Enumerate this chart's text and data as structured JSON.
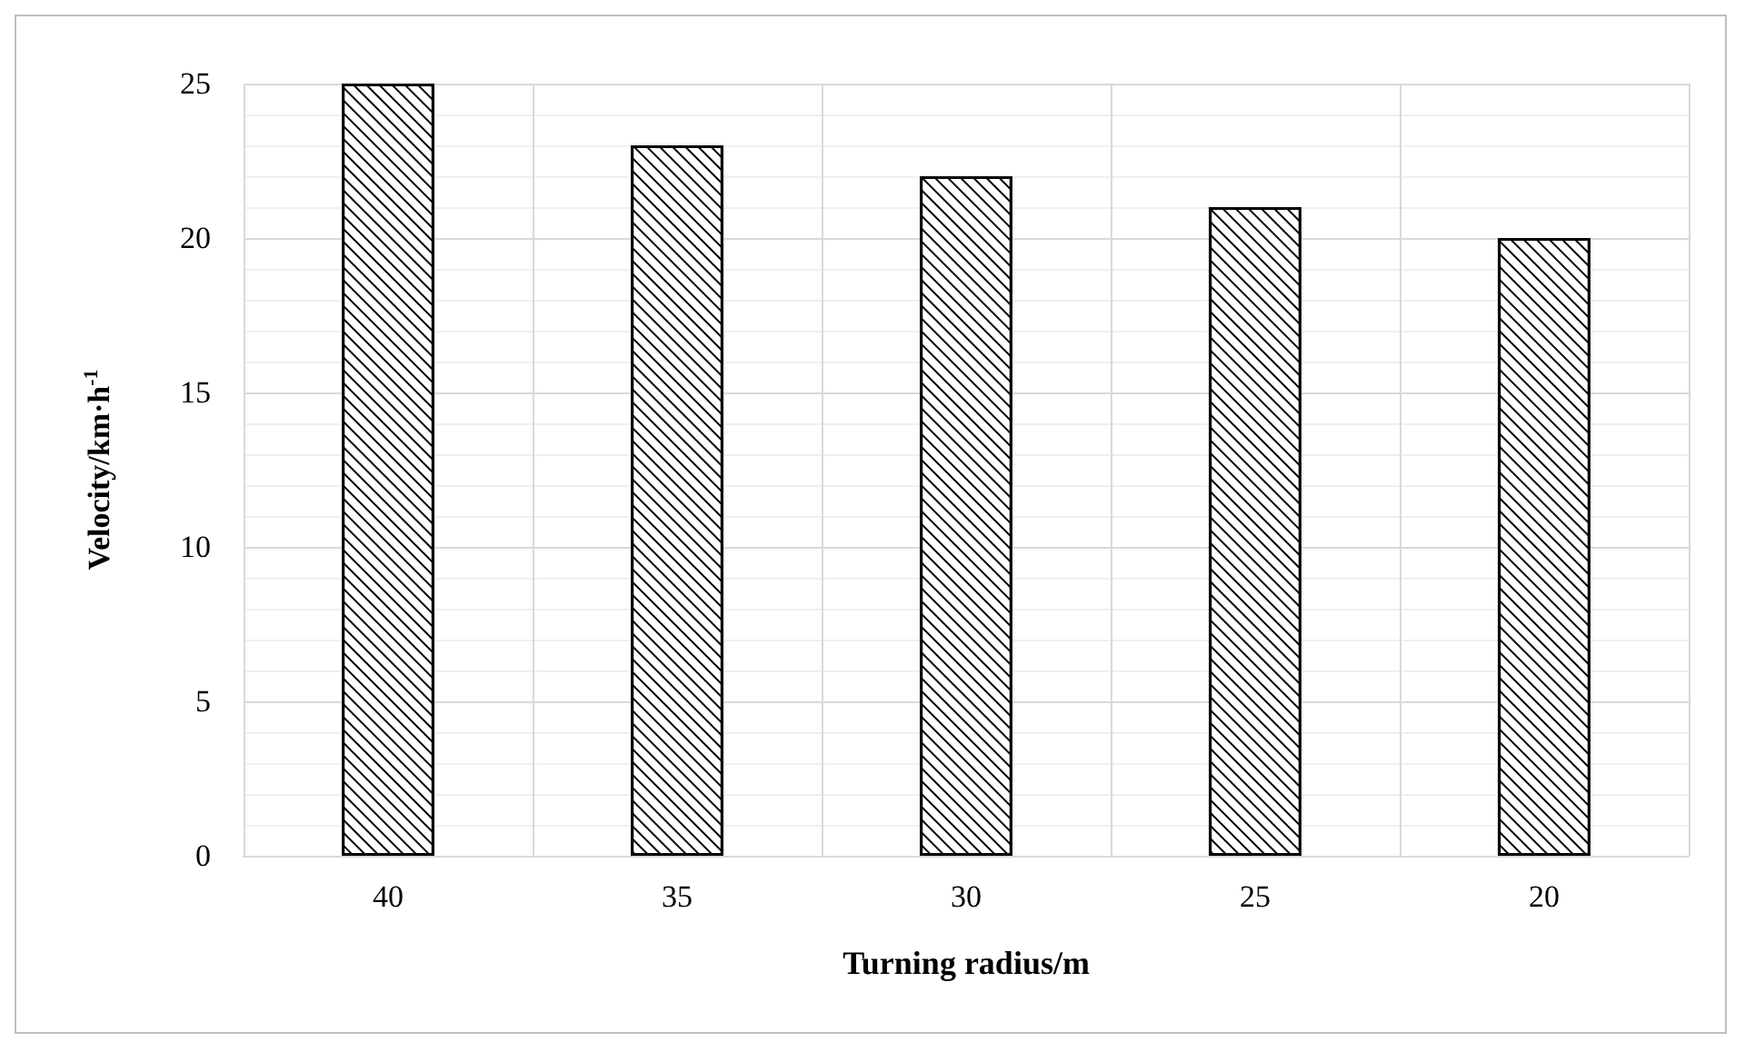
{
  "chart_data": {
    "type": "bar",
    "xlabel": "Turning radius/m",
    "ylabel": "Velocity/km·h$^{-1}$",
    "categories": [
      "40",
      "35",
      "30",
      "25",
      "20"
    ],
    "values": [
      25,
      23,
      22,
      21,
      20
    ],
    "color": "#000000",
    "ylim": [
      0,
      25
    ],
    "yticks": [
      0,
      5,
      10,
      15,
      20,
      25
    ],
    "grid": true
  }
}
